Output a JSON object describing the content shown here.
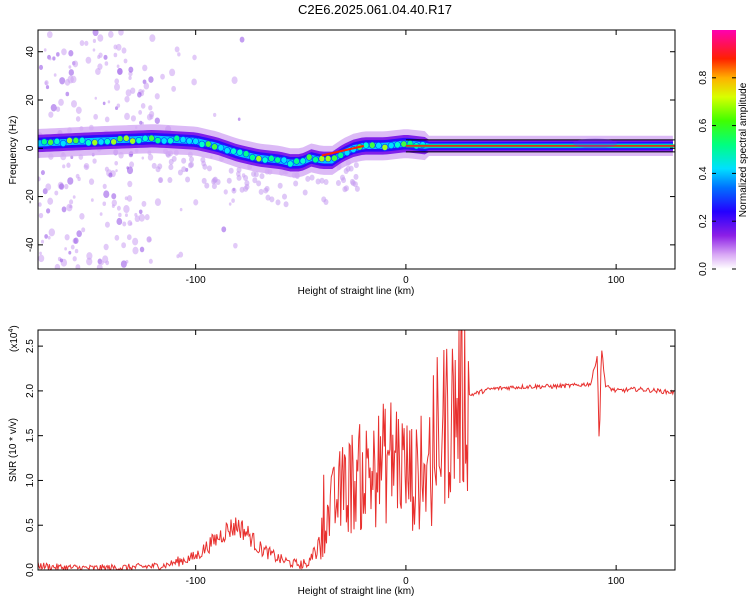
{
  "title": "C2E6.2025.061.04.40.R17",
  "chart_data": [
    {
      "type": "heatmap",
      "xlabel": "Height of straight line (km)",
      "ylabel": "Frequency (Hz)",
      "xlim": [
        -175,
        128
      ],
      "ylim": [
        -50,
        49
      ],
      "xticks": [
        -100,
        0,
        100
      ],
      "yticks": [
        -40,
        -20,
        0,
        20,
        40
      ],
      "colorbar": {
        "label": "Normalized spectral amplitude",
        "range": [
          0,
          1
        ],
        "ticks": [
          "0.0",
          "0.2",
          "0.4",
          "0.6",
          "0.8"
        ],
        "tick_values": [
          0,
          0.2,
          0.4,
          0.6,
          0.8
        ]
      },
      "ridge": {
        "x": [
          -175,
          -150,
          -120,
          -100,
          -90,
          -80,
          -70,
          -60,
          -55,
          -50,
          -45,
          -40,
          -35,
          -30,
          -25,
          -20,
          -10,
          0,
          10,
          40,
          90,
          128
        ],
        "freq": [
          2,
          3,
          4,
          3,
          1,
          -2,
          -4,
          -5,
          -6,
          -6,
          -4,
          -5,
          -5,
          -2,
          0,
          1,
          1,
          2,
          1,
          1,
          1,
          1
        ]
      }
    },
    {
      "type": "line",
      "xlabel": "Height of straight line (km)",
      "ylabel": "SNR (10 * v/v)",
      "y_multiplier": "(x10",
      "y_multiplier_exp": "4",
      "xlim": [
        -175,
        128
      ],
      "ylim": [
        0,
        2.68
      ],
      "xticks": [
        -100,
        0,
        100
      ],
      "yticks": [
        "0.0",
        "0.5",
        "1.0",
        "1.5",
        "2.0",
        "2.5"
      ],
      "ytick_values": [
        0,
        0.5,
        1.0,
        1.5,
        2.0,
        2.5
      ],
      "series": [
        {
          "name": "SNR",
          "color": "#e8302e",
          "x": [
            -175,
            -165,
            -150,
            -130,
            -115,
            -100,
            -90,
            -85,
            -80,
            -75,
            -70,
            -60,
            -55,
            -50,
            -45,
            -40,
            -35,
            -30,
            -25,
            -20,
            -15,
            -10,
            -5,
            0,
            5,
            10,
            11,
            12,
            13,
            15,
            20,
            25,
            30,
            40,
            50,
            60,
            70,
            80,
            88,
            91,
            92,
            93,
            95,
            100,
            110,
            120,
            128
          ],
          "y": [
            0.05,
            0.03,
            0.02,
            0.03,
            0.05,
            0.15,
            0.35,
            0.45,
            0.5,
            0.4,
            0.25,
            0.12,
            0.08,
            0.06,
            0.1,
            0.4,
            0.7,
            0.9,
            1.0,
            1.05,
            1.1,
            1.2,
            1.3,
            1.1,
            1.0,
            1.2,
            1.7,
            0.5,
            1.6,
            1.5,
            1.7,
            1.85,
            1.95,
            2.02,
            2.04,
            2.05,
            2.05,
            2.06,
            2.08,
            2.4,
            1.35,
            2.5,
            2.05,
            2.0,
            2.02,
            2.0,
            1.98
          ]
        }
      ]
    }
  ]
}
